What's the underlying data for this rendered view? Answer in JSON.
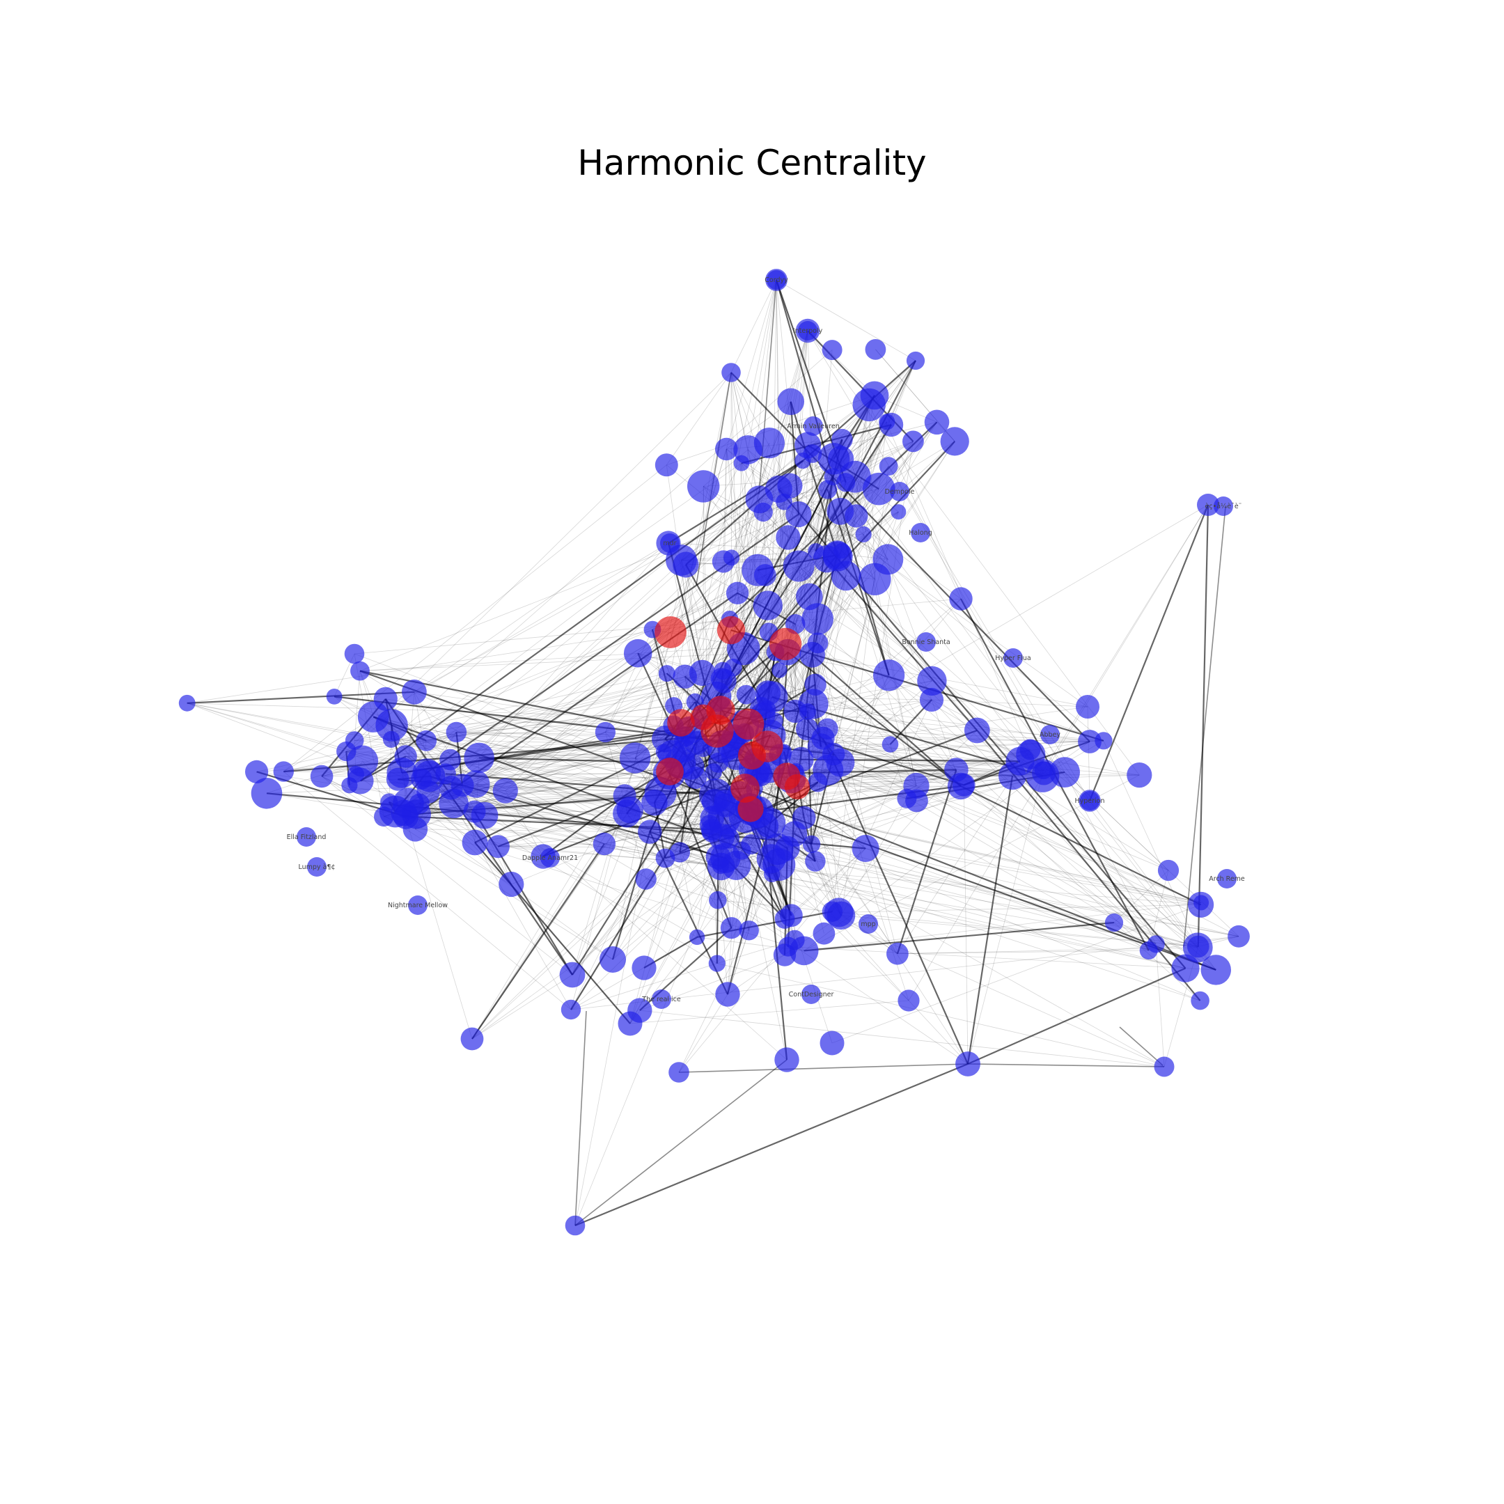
{
  "title": "Harmonic Centrality",
  "colors": {
    "normal": "#1f1fe6",
    "highlight": "#e31212",
    "edge": "#000000"
  },
  "labeled_nodes": [
    {
      "label": "Cordyy"
    },
    {
      "label": "Interpoly"
    },
    {
      "label": "Armin Vaileuren"
    },
    {
      "label": "Dempole"
    },
    {
      "label": "Halong"
    },
    {
      "label": "Nightmare Mellow"
    },
    {
      "label": "Ella Fitzland"
    },
    {
      "label": "Lumpy à¶¢"
    },
    {
      "label": "Bonnie Shanta"
    },
    {
      "label": "Hyper Flua"
    },
    {
      "label": "Hyperion"
    },
    {
      "label": "The real ice"
    },
    {
      "label": "Dapple Anamr21"
    },
    {
      "label": "ContDesigner"
    },
    {
      "label": "mdr"
    },
    {
      "label": "èç•å¼è¯è¨"
    },
    {
      "label": "Arch Reme"
    },
    {
      "label": "Abbey"
    },
    {
      "label": "mpp"
    }
  ]
}
